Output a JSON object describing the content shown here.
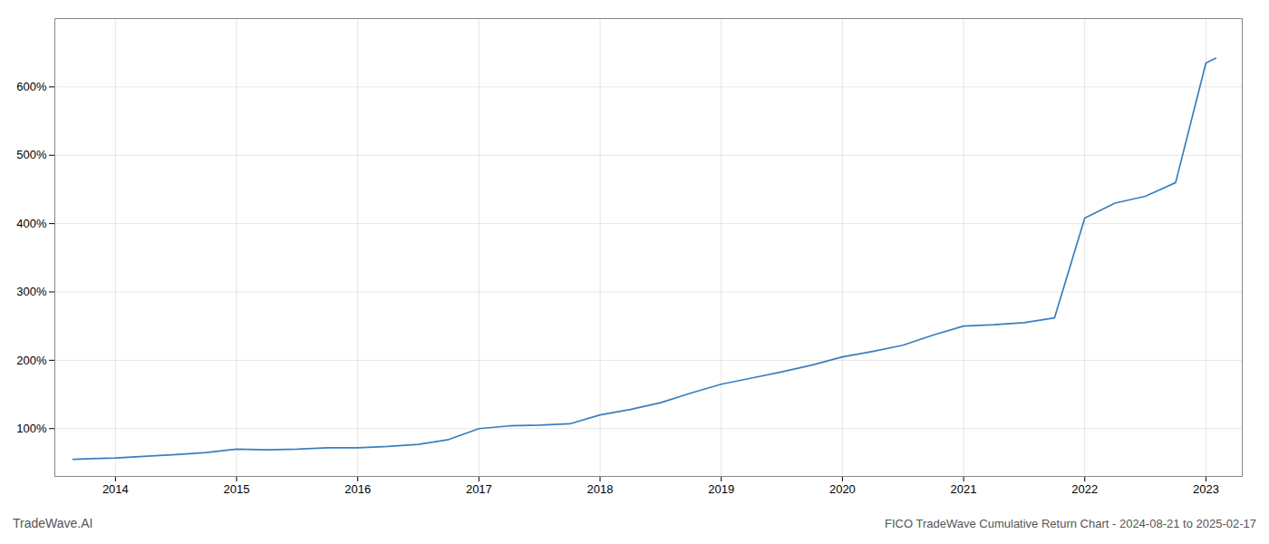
{
  "chart_data": {
    "type": "line",
    "title": "FICO TradeWave Cumulative Return Chart - 2024-08-21 to 2025-02-17",
    "annotations": [
      "TradeWave.AI"
    ],
    "x": [
      2013.65,
      2013.8,
      2014.0,
      2014.2,
      2014.5,
      2014.75,
      2015.0,
      2015.25,
      2015.5,
      2015.75,
      2016.0,
      2016.25,
      2016.5,
      2016.75,
      2017.0,
      2017.25,
      2017.5,
      2017.75,
      2018.0,
      2018.25,
      2018.5,
      2018.75,
      2019.0,
      2019.25,
      2019.5,
      2019.75,
      2020.0,
      2020.25,
      2020.5,
      2020.75,
      2021.0,
      2021.25,
      2021.5,
      2021.75,
      2022.0,
      2022.25,
      2022.5,
      2022.75,
      2023.0,
      2023.08
    ],
    "values": [
      55,
      56,
      57,
      59,
      62,
      65,
      70,
      69,
      70,
      72,
      72,
      74,
      77,
      84,
      100,
      104,
      105,
      107,
      120,
      128,
      138,
      152,
      165,
      174,
      183,
      193,
      205,
      213,
      222,
      237,
      250,
      252,
      255,
      262,
      408,
      430,
      440,
      460,
      635,
      642
    ],
    "color": "#3a7ebf",
    "xlim": [
      2013.5,
      2023.3
    ],
    "xticks": [
      2014,
      2015,
      2016,
      2017,
      2018,
      2019,
      2020,
      2021,
      2022,
      2023
    ],
    "ylim": [
      30,
      700
    ],
    "yticks": [
      {
        "value": 100,
        "label": "100%"
      },
      {
        "value": 200,
        "label": "200%"
      },
      {
        "value": 300,
        "label": "300%"
      },
      {
        "value": 400,
        "label": "400%"
      },
      {
        "value": 500,
        "label": "500%"
      },
      {
        "value": 600,
        "label": "600%"
      }
    ],
    "grid": true
  }
}
